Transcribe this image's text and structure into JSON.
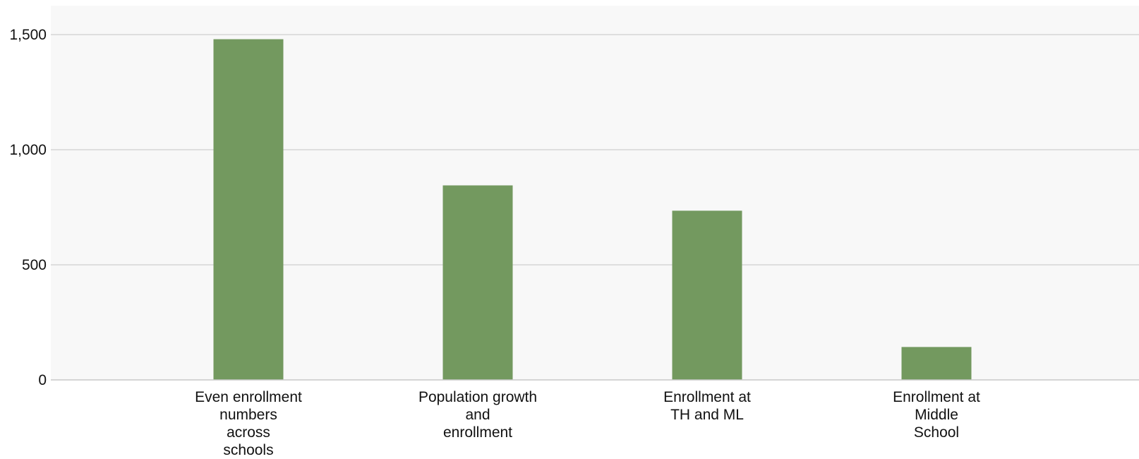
{
  "chart_data": {
    "type": "bar",
    "categories": [
      [
        "Even enrollment",
        "numbers",
        "across",
        "schools"
      ],
      [
        "Population growth",
        "and",
        "enrollment"
      ],
      [
        "Enrollment at",
        "TH and ML"
      ],
      [
        "Enrollment at",
        "Middle",
        "School"
      ]
    ],
    "values": [
      1480,
      845,
      735,
      143
    ],
    "ylim": [
      0,
      1500
    ],
    "yticks": [
      0,
      500,
      1000,
      1500
    ],
    "ytick_labels": [
      "0",
      "500",
      "1,000",
      "1,500"
    ],
    "grid": true,
    "title": "",
    "xlabel": "",
    "ylabel": ""
  },
  "colors": {
    "bar": "#73995f",
    "plot_background": "#f8f8f8",
    "gridline": "#d6d6d6",
    "axis": "#c8c8c8"
  }
}
